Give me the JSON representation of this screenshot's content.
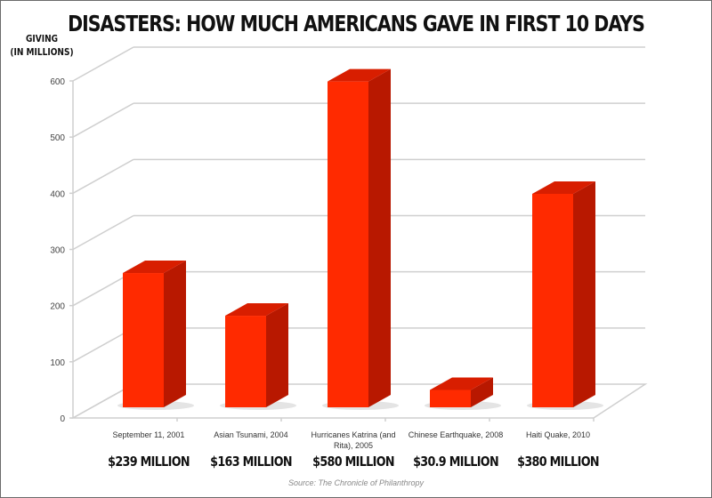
{
  "header": {
    "title": "DISASTERS: HOW MUCH AMERICANS GAVE IN FIRST 10 DAYS",
    "ylabel_line1": "GIVING",
    "ylabel_line2": "(IN MILLIONS)"
  },
  "footer": {
    "source": "Source: The Chronicle of Philanthropy"
  },
  "colors": {
    "bar_front": "#ff2a00",
    "bar_top": "#d81e00",
    "bar_side": "#b81800",
    "grid": "#cfcfcf"
  },
  "chart_data": {
    "type": "bar",
    "title": "DISASTERS: HOW MUCH AMERICANS GAVE IN FIRST 10 DAYS",
    "xlabel": "",
    "ylabel": "GIVING (IN MILLIONS)",
    "ylim": [
      0,
      600
    ],
    "yticks": [
      0,
      100,
      200,
      300,
      400,
      500,
      600
    ],
    "grid": true,
    "style": "3d",
    "categories": [
      "September 11, 2001",
      "Asian Tsunami, 2004",
      "Hurricanes Katrina (and Rita), 2005",
      "Chinese Earthquake, 2008",
      "Haiti Quake, 2010"
    ],
    "values": [
      239,
      163,
      580,
      30.9,
      380
    ],
    "value_labels": [
      "$239 MILLION",
      "$163 MILLION",
      "$580 MILLION",
      "$30.9 MILLION",
      "$380 MILLION"
    ],
    "annotations": [
      "Source: The Chronicle of Philanthropy"
    ]
  }
}
